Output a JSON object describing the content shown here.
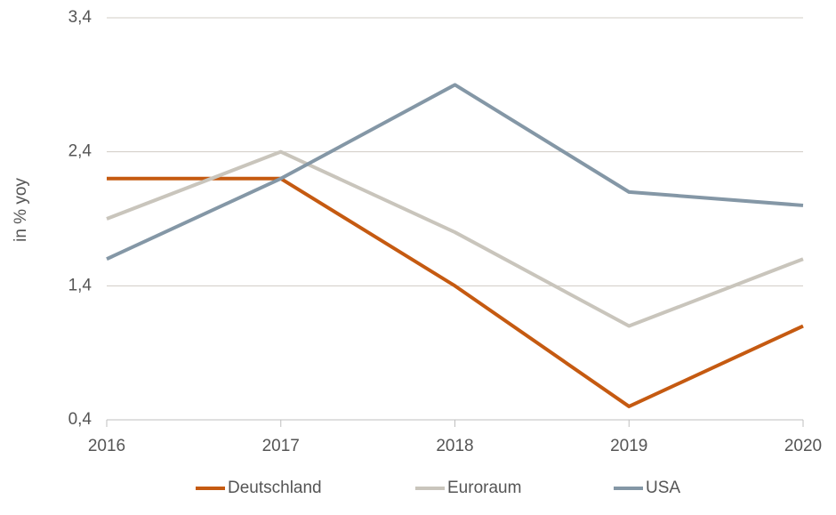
{
  "chart_data": {
    "type": "line",
    "y_label": "in % yoy",
    "x": [
      2016,
      2017,
      2018,
      2019,
      2020
    ],
    "xlim": [
      2016,
      2020
    ],
    "xticks": [
      2016,
      2017,
      2018,
      2019,
      2020
    ],
    "ylim": [
      0.4,
      3.4
    ],
    "yticks": [
      {
        "value": 0.4,
        "label": "0,4"
      },
      {
        "value": 1.4,
        "label": "1,4"
      },
      {
        "value": 2.4,
        "label": "2,4"
      },
      {
        "value": 3.4,
        "label": "3,4"
      }
    ],
    "grid": true,
    "legend": "bottom",
    "series": [
      {
        "name": "Deutschland",
        "color": "#c55a11",
        "values": [
          2.2,
          2.2,
          1.4,
          0.5,
          1.1
        ]
      },
      {
        "name": "Euroraum",
        "color": "#c9c5bc",
        "values": [
          1.9,
          2.4,
          1.8,
          1.1,
          1.6
        ]
      },
      {
        "name": "USA",
        "color": "#8497a6",
        "values": [
          1.6,
          2.2,
          2.9,
          2.1,
          2.0
        ]
      }
    ]
  }
}
